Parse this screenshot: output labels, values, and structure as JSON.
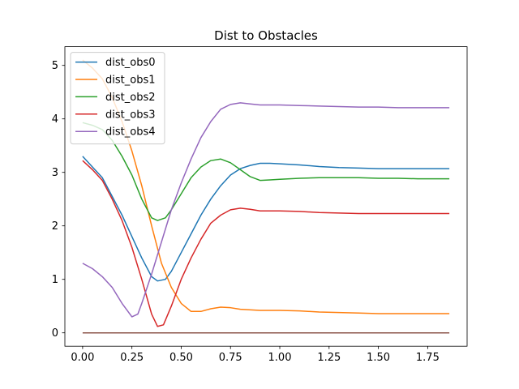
{
  "chart_data": {
    "type": "line",
    "title": "Dist to Obstacles",
    "xlabel": "",
    "ylabel": "",
    "xlim": [
      -0.09,
      1.95
    ],
    "ylim": [
      -0.25,
      5.35
    ],
    "xticks": [
      "0.00",
      "0.25",
      "0.50",
      "0.75",
      "1.00",
      "1.25",
      "1.50",
      "1.75"
    ],
    "xtick_values": [
      0.0,
      0.25,
      0.5,
      0.75,
      1.0,
      1.25,
      1.5,
      1.75
    ],
    "yticks": [
      "0",
      "1",
      "2",
      "3",
      "4",
      "5"
    ],
    "ytick_values": [
      0,
      1,
      2,
      3,
      4,
      5
    ],
    "grid": false,
    "legend_position": "top-left",
    "series": [
      {
        "name": "dist_obs0",
        "color": "#1f77b4",
        "x": [
          0.0,
          0.05,
          0.1,
          0.15,
          0.2,
          0.25,
          0.3,
          0.35,
          0.38,
          0.42,
          0.45,
          0.5,
          0.55,
          0.6,
          0.65,
          0.7,
          0.75,
          0.8,
          0.85,
          0.9,
          0.95,
          1.0,
          1.1,
          1.2,
          1.3,
          1.4,
          1.5,
          1.6,
          1.7,
          1.8,
          1.86
        ],
        "y": [
          3.3,
          3.1,
          2.9,
          2.55,
          2.2,
          1.8,
          1.4,
          1.05,
          0.97,
          1.0,
          1.15,
          1.5,
          1.85,
          2.2,
          2.5,
          2.75,
          2.95,
          3.07,
          3.13,
          3.17,
          3.17,
          3.16,
          3.14,
          3.11,
          3.09,
          3.08,
          3.07,
          3.07,
          3.07,
          3.07,
          3.07
        ]
      },
      {
        "name": "dist_obs1",
        "color": "#ff7f0e",
        "x": [
          0.0,
          0.05,
          0.1,
          0.15,
          0.2,
          0.25,
          0.3,
          0.35,
          0.4,
          0.45,
          0.5,
          0.55,
          0.6,
          0.65,
          0.7,
          0.75,
          0.8,
          0.9,
          1.0,
          1.1,
          1.2,
          1.3,
          1.4,
          1.5,
          1.6,
          1.7,
          1.8,
          1.86
        ],
        "y": [
          5.1,
          4.95,
          4.75,
          4.4,
          3.95,
          3.4,
          2.75,
          2.0,
          1.3,
          0.85,
          0.55,
          0.4,
          0.4,
          0.45,
          0.48,
          0.47,
          0.44,
          0.42,
          0.42,
          0.41,
          0.39,
          0.38,
          0.37,
          0.36,
          0.36,
          0.36,
          0.36,
          0.36
        ]
      },
      {
        "name": "dist_obs2",
        "color": "#2ca02c",
        "x": [
          0.0,
          0.05,
          0.1,
          0.15,
          0.2,
          0.25,
          0.3,
          0.35,
          0.38,
          0.42,
          0.45,
          0.5,
          0.55,
          0.6,
          0.65,
          0.7,
          0.75,
          0.8,
          0.85,
          0.9,
          0.95,
          1.0,
          1.1,
          1.2,
          1.3,
          1.4,
          1.5,
          1.6,
          1.7,
          1.8,
          1.86
        ],
        "y": [
          3.93,
          3.88,
          3.8,
          3.6,
          3.3,
          2.95,
          2.5,
          2.15,
          2.1,
          2.15,
          2.3,
          2.6,
          2.9,
          3.1,
          3.22,
          3.25,
          3.18,
          3.05,
          2.92,
          2.85,
          2.86,
          2.87,
          2.89,
          2.9,
          2.9,
          2.9,
          2.89,
          2.89,
          2.88,
          2.88,
          2.88
        ]
      },
      {
        "name": "dist_obs3",
        "color": "#d62728",
        "x": [
          0.0,
          0.05,
          0.1,
          0.15,
          0.2,
          0.25,
          0.3,
          0.35,
          0.38,
          0.41,
          0.45,
          0.5,
          0.55,
          0.6,
          0.65,
          0.7,
          0.75,
          0.8,
          0.85,
          0.9,
          1.0,
          1.1,
          1.2,
          1.3,
          1.4,
          1.5,
          1.6,
          1.7,
          1.8,
          1.86
        ],
        "y": [
          3.22,
          3.05,
          2.85,
          2.5,
          2.1,
          1.6,
          1.0,
          0.35,
          0.12,
          0.15,
          0.5,
          1.0,
          1.4,
          1.75,
          2.05,
          2.2,
          2.3,
          2.33,
          2.31,
          2.28,
          2.28,
          2.27,
          2.25,
          2.24,
          2.23,
          2.23,
          2.23,
          2.23,
          2.23,
          2.23
        ]
      },
      {
        "name": "dist_obs4",
        "color": "#9467bd",
        "x": [
          0.0,
          0.05,
          0.1,
          0.15,
          0.2,
          0.25,
          0.28,
          0.3,
          0.35,
          0.4,
          0.45,
          0.5,
          0.55,
          0.6,
          0.65,
          0.7,
          0.75,
          0.8,
          0.85,
          0.9,
          1.0,
          1.1,
          1.2,
          1.3,
          1.4,
          1.5,
          1.6,
          1.7,
          1.8,
          1.86
        ],
        "y": [
          1.3,
          1.2,
          1.05,
          0.85,
          0.55,
          0.3,
          0.35,
          0.55,
          1.1,
          1.7,
          2.3,
          2.8,
          3.25,
          3.65,
          3.95,
          4.18,
          4.27,
          4.3,
          4.28,
          4.26,
          4.26,
          4.25,
          4.24,
          4.23,
          4.22,
          4.22,
          4.21,
          4.21,
          4.21,
          4.21
        ]
      },
      {
        "name": "",
        "color": "#8c564b",
        "x": [
          0.0,
          1.86
        ],
        "y": [
          0.0,
          0.0
        ]
      }
    ]
  }
}
